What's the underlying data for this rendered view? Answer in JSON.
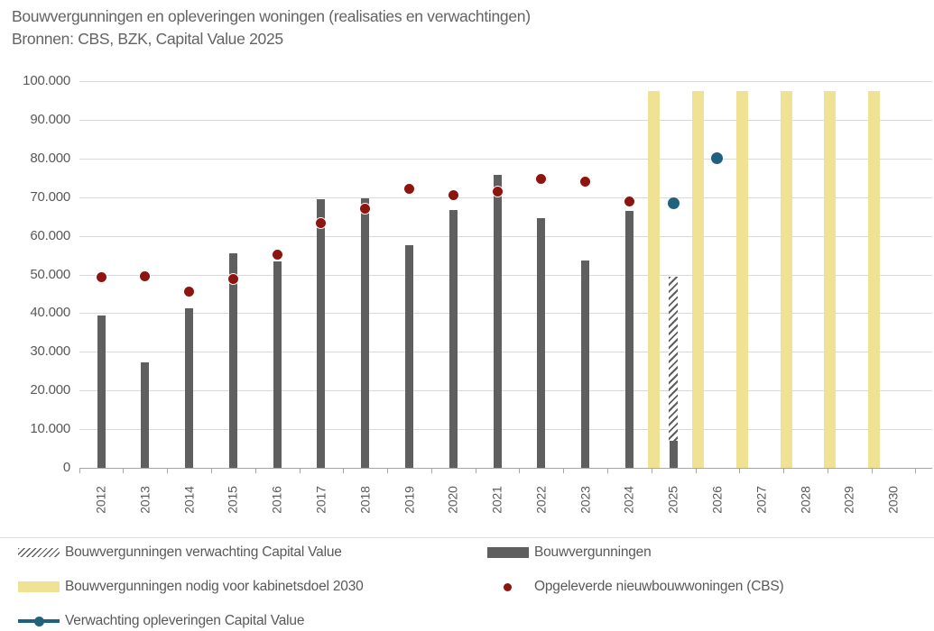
{
  "title": "Bouwvergunningen en opleveringen woningen (realisaties en verwachtingen)",
  "subtitle": "Bronnen: CBS, BZK, Capital Value 2025",
  "colors": {
    "bar_gray": "#5f5f5f",
    "bar_yellow": "#efe295",
    "dot_red": "#8e1410",
    "dot_blue": "#20627e",
    "gridline": "#d9d9d9",
    "text": "#595959"
  },
  "chart_data": {
    "type": "bar",
    "title": "Bouwvergunningen en opleveringen woningen (realisaties en verwachtingen)",
    "subtitle": "Bronnen: CBS, BZK, Capital Value 2025",
    "categories": [
      "2012",
      "2013",
      "2014",
      "2015",
      "2016",
      "2017",
      "2018",
      "2019",
      "2020",
      "2021",
      "2022",
      "2023",
      "2024",
      "2025",
      "2026",
      "2027",
      "2028",
      "2029",
      "2030"
    ],
    "ylim": [
      0,
      100000
    ],
    "ytick_step": 10000,
    "ytick_labels": [
      "0",
      "10.000",
      "20.000",
      "30.000",
      "40.000",
      "50.000",
      "60.000",
      "70.000",
      "80.000",
      "90.000",
      "100.000"
    ],
    "grid": true,
    "legend_position": "bottom",
    "series": [
      {
        "name": "Bouwvergunningen",
        "type": "bar",
        "color": "#5f5f5f",
        "values": [
          39300,
          27300,
          41300,
          55500,
          53400,
          69500,
          69800,
          57700,
          66600,
          75800,
          64600,
          53700,
          66500,
          7000,
          null,
          null,
          null,
          null,
          null
        ]
      },
      {
        "name": "Bouwvergunningen verwachting Capital Value",
        "type": "bar",
        "style": "hatched",
        "stacked_on": "Bouwvergunningen",
        "values": [
          null,
          null,
          null,
          null,
          null,
          null,
          null,
          null,
          null,
          null,
          null,
          null,
          null,
          49500,
          null,
          null,
          null,
          null,
          null
        ]
      },
      {
        "name": "Bouwvergunningen nodig voor kabinetsdoel 2030",
        "type": "bar",
        "color": "#efe295",
        "values": [
          null,
          null,
          null,
          null,
          null,
          null,
          null,
          null,
          null,
          null,
          null,
          null,
          null,
          97500,
          97500,
          97500,
          97500,
          97500,
          97500
        ]
      },
      {
        "name": "Opgeleverde nieuwbouwwoningen (CBS)",
        "type": "scatter",
        "color": "#8e1410",
        "values": [
          49300,
          49500,
          45600,
          48900,
          55100,
          63200,
          67000,
          72100,
          70500,
          71500,
          74700,
          74000,
          68800,
          null,
          null,
          null,
          null,
          null,
          null
        ]
      },
      {
        "name": "Verwachting opleveringen Capital Value",
        "type": "scatter",
        "color": "#20627e",
        "values": [
          null,
          null,
          null,
          null,
          null,
          null,
          null,
          null,
          null,
          null,
          null,
          null,
          null,
          68500,
          80000,
          null,
          null,
          null,
          null
        ]
      }
    ]
  },
  "legend": {
    "items": [
      {
        "label": "Bouwvergunningen verwachting Capital Value",
        "swatch": "hatch"
      },
      {
        "label": "Bouwvergunningen",
        "swatch": "solid-gray"
      },
      {
        "label": "Bouwvergunningen nodig voor kabinetsdoel 2030",
        "swatch": "solid-yellow"
      },
      {
        "label": "Opgeleverde nieuwbouwwoningen (CBS)",
        "swatch": "dot-red"
      },
      {
        "label": "Verwachting opleveringen Capital Value",
        "swatch": "line-dot-blue"
      }
    ]
  }
}
